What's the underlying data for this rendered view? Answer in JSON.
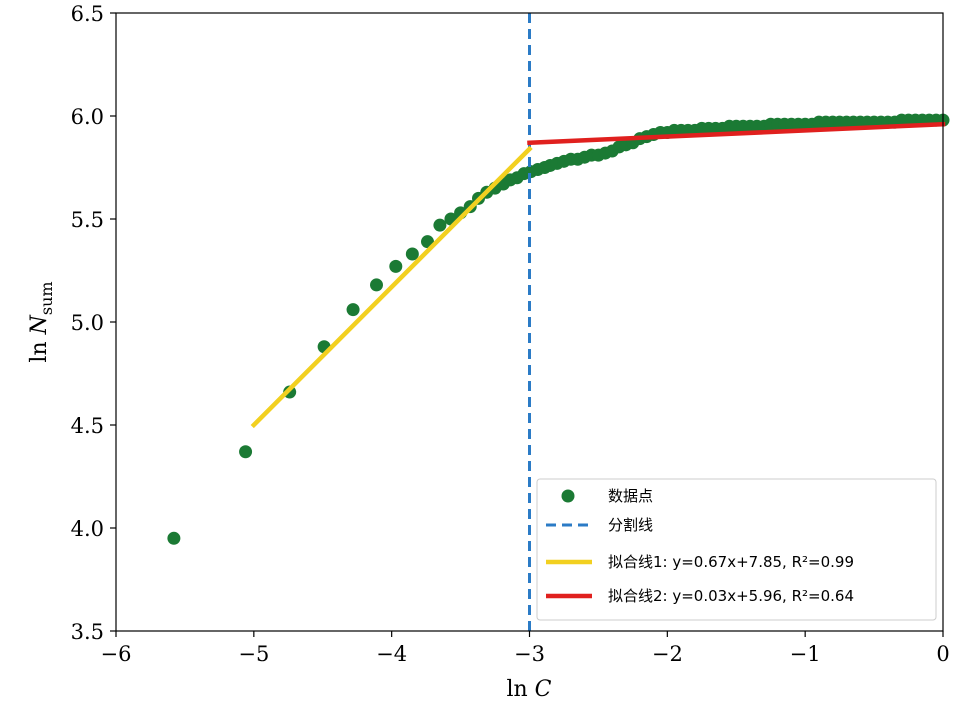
{
  "chart_data": {
    "type": "scatter",
    "xlabel": "ln C",
    "ylabel": "ln N_sum",
    "xlim": [
      -6,
      0
    ],
    "ylim": [
      3.5,
      6.5
    ],
    "x_ticks": [
      "−6",
      "−5",
      "−4",
      "−3",
      "−2",
      "−1",
      "0"
    ],
    "y_ticks": [
      "3.5",
      "4.0",
      "4.5",
      "5.0",
      "5.5",
      "6.0",
      "6.5"
    ],
    "grid": false,
    "legend_position": "lower-right",
    "colors": {
      "points": "#1b7a34",
      "split": "#2b7bc6",
      "fit1": "#f2d020",
      "fit2": "#e0201e"
    },
    "legend": [
      {
        "key": "points",
        "label": "数据点"
      },
      {
        "key": "split",
        "label": "分割线"
      },
      {
        "key": "fit1",
        "label": "拟合线1: y=0.67x+7.85,  R²=0.99"
      },
      {
        "key": "fit2",
        "label": "拟合线2: y=0.03x+5.96,  R²=0.64"
      }
    ],
    "split_x": -3,
    "fits": [
      {
        "key": "fit1",
        "slope": 0.67,
        "intercept": 7.85,
        "x_range": [
          -5.0,
          -3.0
        ],
        "r2": 0.99
      },
      {
        "key": "fit2",
        "slope": 0.03,
        "intercept": 5.96,
        "x_range": [
          -3.0,
          0.0
        ],
        "r2": 0.64
      }
    ],
    "series": [
      {
        "key": "points",
        "points": [
          [
            -5.58,
            3.95
          ],
          [
            -5.06,
            4.37
          ],
          [
            -4.74,
            4.66
          ],
          [
            -4.49,
            4.88
          ],
          [
            -4.28,
            5.06
          ],
          [
            -4.11,
            5.18
          ],
          [
            -3.97,
            5.27
          ],
          [
            -3.85,
            5.33
          ],
          [
            -3.74,
            5.39
          ],
          [
            -3.65,
            5.47
          ],
          [
            -3.57,
            5.5
          ],
          [
            -3.5,
            5.53
          ],
          [
            -3.43,
            5.56
          ],
          [
            -3.37,
            5.6
          ],
          [
            -3.31,
            5.63
          ],
          [
            -3.25,
            5.65
          ],
          [
            -3.19,
            5.67
          ],
          [
            -3.14,
            5.69
          ],
          [
            -3.09,
            5.7
          ],
          [
            -3.04,
            5.72
          ],
          [
            -2.99,
            5.73
          ],
          [
            -2.94,
            5.74
          ],
          [
            -2.89,
            5.75
          ],
          [
            -2.85,
            5.76
          ],
          [
            -2.8,
            5.77
          ],
          [
            -2.75,
            5.78
          ],
          [
            -2.7,
            5.79
          ],
          [
            -2.65,
            5.79
          ],
          [
            -2.6,
            5.8
          ],
          [
            -2.55,
            5.81
          ],
          [
            -2.5,
            5.81
          ],
          [
            -2.45,
            5.82
          ],
          [
            -2.4,
            5.83
          ],
          [
            -2.35,
            5.85
          ],
          [
            -2.3,
            5.86
          ],
          [
            -2.25,
            5.87
          ],
          [
            -2.2,
            5.89
          ],
          [
            -2.15,
            5.9
          ],
          [
            -2.1,
            5.91
          ],
          [
            -2.05,
            5.92
          ],
          [
            -2.0,
            5.92
          ],
          [
            -1.95,
            5.93
          ],
          [
            -1.9,
            5.93
          ],
          [
            -1.85,
            5.93
          ],
          [
            -1.8,
            5.93
          ],
          [
            -1.75,
            5.94
          ],
          [
            -1.7,
            5.94
          ],
          [
            -1.65,
            5.94
          ],
          [
            -1.6,
            5.94
          ],
          [
            -1.55,
            5.95
          ],
          [
            -1.5,
            5.95
          ],
          [
            -1.45,
            5.95
          ],
          [
            -1.4,
            5.95
          ],
          [
            -1.35,
            5.95
          ],
          [
            -1.3,
            5.95
          ],
          [
            -1.25,
            5.96
          ],
          [
            -1.2,
            5.96
          ],
          [
            -1.15,
            5.96
          ],
          [
            -1.1,
            5.96
          ],
          [
            -1.05,
            5.96
          ],
          [
            -1.0,
            5.96
          ],
          [
            -0.95,
            5.96
          ],
          [
            -0.9,
            5.97
          ],
          [
            -0.85,
            5.97
          ],
          [
            -0.8,
            5.97
          ],
          [
            -0.75,
            5.97
          ],
          [
            -0.7,
            5.97
          ],
          [
            -0.65,
            5.97
          ],
          [
            -0.6,
            5.97
          ],
          [
            -0.55,
            5.97
          ],
          [
            -0.5,
            5.97
          ],
          [
            -0.45,
            5.97
          ],
          [
            -0.4,
            5.97
          ],
          [
            -0.35,
            5.97
          ],
          [
            -0.3,
            5.98
          ],
          [
            -0.25,
            5.98
          ],
          [
            -0.2,
            5.98
          ],
          [
            -0.15,
            5.98
          ],
          [
            -0.1,
            5.98
          ],
          [
            -0.05,
            5.98
          ],
          [
            0.0,
            5.98
          ]
        ]
      }
    ]
  }
}
